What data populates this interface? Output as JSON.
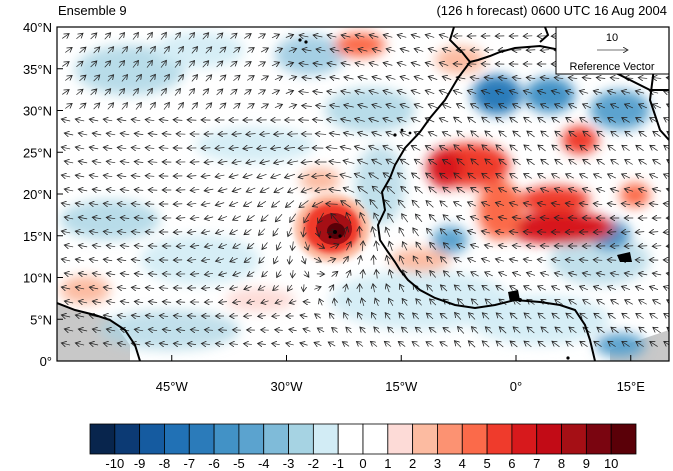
{
  "header": {
    "left_title": "Ensemble 9",
    "right_title": "(126 h forecast) 0600 UTC 16 Aug 2004"
  },
  "reference_vector": {
    "magnitude_label": "10",
    "label": "Reference Vector"
  },
  "map": {
    "type": "wind vector field with shaded anomaly",
    "lat_range": [
      0,
      40
    ],
    "lon_range": [
      -60,
      20
    ],
    "y_ticks": [
      {
        "value": 0,
        "label": "0°"
      },
      {
        "value": 5,
        "label": "5°N"
      },
      {
        "value": 10,
        "label": "10°N"
      },
      {
        "value": 15,
        "label": "15°N"
      },
      {
        "value": 20,
        "label": "20°N"
      },
      {
        "value": 25,
        "label": "25°N"
      },
      {
        "value": 30,
        "label": "30°N"
      },
      {
        "value": 35,
        "label": "35°N"
      },
      {
        "value": 40,
        "label": "40°N"
      }
    ],
    "x_ticks": [
      {
        "value": -45,
        "label": "45°W"
      },
      {
        "value": -30,
        "label": "30°W"
      },
      {
        "value": -15,
        "label": "15°W"
      },
      {
        "value": 0,
        "label": "0°"
      },
      {
        "value": 15,
        "label": "15°E"
      }
    ],
    "features": [
      {
        "name": "cyclone-vortex",
        "lon": -24,
        "lat": 17,
        "value": 10
      },
      {
        "name": "positive-anomaly-northwest-africa",
        "lon": -8,
        "lat": 24,
        "value": 6
      },
      {
        "name": "positive-anomaly-sahel",
        "lon": 7,
        "lat": 17,
        "value": 8
      },
      {
        "name": "positive-anomaly-algeria",
        "lon": 7,
        "lat": 27,
        "value": 6
      },
      {
        "name": "negative-anomaly-morocco",
        "lon": -2,
        "lat": 33,
        "value": -5
      },
      {
        "name": "negative-anomaly-libya",
        "lon": 13,
        "lat": 29,
        "value": -4
      }
    ]
  },
  "colorbar": {
    "labels": [
      "-10",
      "-9",
      "-8",
      "-7",
      "-6",
      "-5",
      "-4",
      "-3",
      "-2",
      "-1",
      "0",
      "1",
      "2",
      "3",
      "4",
      "5",
      "6",
      "7",
      "8",
      "9",
      "10"
    ],
    "colors": [
      "#08254d",
      "#0c3a74",
      "#155ba0",
      "#2171b5",
      "#2b7bba",
      "#4292c6",
      "#5ba3cf",
      "#7fbbd9",
      "#a6d3e3",
      "#d2ecf5",
      "#ffffff",
      "#ffffff",
      "#fddbd7",
      "#fcbba1",
      "#fc9272",
      "#fb6a4a",
      "#ef3b2c",
      "#d7191c",
      "#c20b16",
      "#a50f15",
      "#7a0510",
      "#5a0008"
    ]
  }
}
